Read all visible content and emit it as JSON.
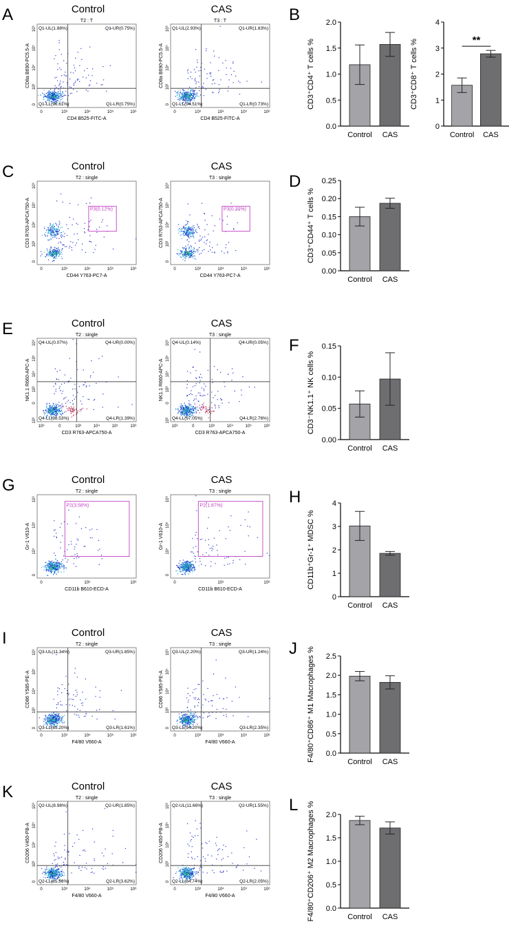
{
  "conditions": [
    "Control",
    "CAS"
  ],
  "panels": [
    {
      "id": "A",
      "type": "flow_quadrant",
      "xlabel": "CD4 B525-FITC-A",
      "ylabel": "CD8a B690-PC5.5-A",
      "plots": [
        {
          "cond": "Control",
          "gate": "T2 : T",
          "labels": [
            "Q1-UL(1.88%)",
            "Q1-UR(0.75%)",
            "Q1-LL(96.61%)",
            "Q1-LR(0.75%)"
          ],
          "x_ticks": [
            "0",
            "10³",
            "10⁴",
            "10⁵",
            "10⁶"
          ],
          "y_ticks": [
            "10⁶",
            "10⁵",
            "10⁴",
            "10³",
            "0"
          ]
        },
        {
          "cond": "CAS",
          "gate": "T3 : T",
          "labels": [
            "Q1-UL(2.93%)",
            "Q1-UR(1.83%)",
            "Q1-LL(94.51%)",
            "Q1-LR(0.73%)"
          ],
          "x_ticks": [
            "0",
            "10³",
            "10⁴",
            "10⁵",
            "10⁶"
          ],
          "y_ticks": [
            "10⁶",
            "10⁵",
            "10⁴",
            "10³",
            "0"
          ]
        }
      ]
    },
    {
      "id": "C",
      "type": "flow_gate",
      "xlabel": "CD44 Y763-PC7-A",
      "ylabel": "CD3 R763-APCA750-A",
      "plots": [
        {
          "cond": "Control",
          "gate": "T2 : single",
          "labels": [
            "P3(0.12%)"
          ],
          "x_ticks": [
            "0",
            "10³",
            "10⁴",
            "10⁵",
            "10⁶"
          ],
          "y_ticks": [
            "10⁶",
            "10⁵",
            "10⁴",
            "10³",
            "0"
          ]
        },
        {
          "cond": "CAS",
          "gate": "T3 : single",
          "labels": [
            "P3(0.20%)"
          ],
          "x_ticks": [
            "0",
            "10³",
            "10⁴",
            "10⁵",
            "10⁶"
          ],
          "y_ticks": [
            "10⁶",
            "10⁵",
            "10⁴",
            "10³",
            "0"
          ]
        }
      ]
    },
    {
      "id": "E",
      "type": "flow_quadrant",
      "xlabel": "CD3 R763-APCA750-A",
      "ylabel": "NK1.1 R660-APC-A",
      "plots": [
        {
          "cond": "Control",
          "gate": "T2 : single",
          "labels": [
            "Q4-UL(0.07%)",
            "Q4-UR(0.00%)",
            "Q4-LL(98.53%)",
            "Q4-LR(1.39%)"
          ],
          "x_ticks": [
            "10³",
            "0",
            "10³",
            "10⁴",
            "10⁵",
            "10⁶"
          ],
          "y_ticks": [
            "10⁶",
            "10⁵",
            "10⁴",
            "10³",
            "0",
            "10³"
          ]
        },
        {
          "cond": "CAS",
          "gate": "T3 : single",
          "labels": [
            "Q4-UL(0.14%)",
            "Q4-UR(0.05%)",
            "Q4-LL(97.05%)",
            "Q4-LR(2.76%)"
          ],
          "x_ticks": [
            "10³",
            "0",
            "10³",
            "10⁴",
            "10⁵",
            "10⁶"
          ],
          "y_ticks": [
            "10⁶",
            "10⁵",
            "10⁴",
            "10³",
            "0",
            "10³"
          ]
        }
      ]
    },
    {
      "id": "G",
      "type": "flow_gate",
      "xlabel": "CD11b B610-ECD-A",
      "ylabel": "Gr-1 V610-A",
      "plots": [
        {
          "cond": "Control",
          "gate": "T2 : single",
          "labels": [
            "P2(3.58%)"
          ],
          "x_ticks": [
            "0",
            "10⁵",
            "10⁶"
          ],
          "y_ticks": [
            "10⁶",
            "10⁵",
            "10⁴",
            "0"
          ]
        },
        {
          "cond": "CAS",
          "gate": "T3 : single",
          "labels": [
            "P2(1.87%)"
          ],
          "x_ticks": [
            "0",
            "10⁵",
            "10⁶"
          ],
          "y_ticks": [
            "10⁶",
            "10⁵",
            "10⁴",
            "0"
          ]
        }
      ]
    },
    {
      "id": "I",
      "type": "flow_quadrant",
      "xlabel": "F4/80 V660-A",
      "ylabel": "CD86 Y585-PE-A",
      "plots": [
        {
          "cond": "Control",
          "gate": "T2 : single",
          "labels": [
            "Q3-UL(11.34%)",
            "Q3-UR(1.85%)",
            "Q3-LL(85.20%)",
            "Q3-LR(1.61%)"
          ],
          "x_ticks": [
            "0",
            "10³",
            "10⁴",
            "10⁵",
            "10⁶"
          ],
          "y_ticks": [
            "10⁶",
            "10⁵",
            "10⁴",
            "10³",
            "0"
          ]
        },
        {
          "cond": "CAS",
          "gate": "T3 : single",
          "labels": [
            "Q3-UL(2.20%)",
            "Q3-UR(1.24%)",
            "Q3-LL(94.20%)",
            "Q3-LR(2.35%)"
          ],
          "x_ticks": [
            "0",
            "10³",
            "10⁴",
            "10⁵",
            "10⁶"
          ],
          "y_ticks": [
            "10⁶",
            "10⁵",
            "10⁴",
            "10³",
            "0"
          ]
        }
      ]
    },
    {
      "id": "K",
      "type": "flow_quadrant",
      "xlabel": "F4/80 V660-A",
      "ylabel": "CD206 V450-PB-A",
      "plots": [
        {
          "cond": "Control",
          "gate": "T2 : single",
          "labels": [
            "Q2-UL(8.98%)",
            "Q2-UR(1.85%)",
            "Q2-LL(85.56%)",
            "Q2-LR(3.62%)"
          ],
          "x_ticks": [
            "0",
            "10³",
            "10⁴",
            "10⁵",
            "10⁶"
          ],
          "y_ticks": [
            "10⁶",
            "10⁵",
            "10⁴",
            "10³",
            "0"
          ]
        },
        {
          "cond": "CAS",
          "gate": "T3 : single",
          "labels": [
            "Q2-UL(11.66%)",
            "Q2-UR(1.55%)",
            "Q2-LL(84.74%)",
            "Q2-LR(2.05%)"
          ],
          "x_ticks": [
            "0",
            "10³",
            "10⁴",
            "10⁵",
            "10⁶"
          ],
          "y_ticks": [
            "10⁶",
            "10⁵",
            "10⁴",
            "10³",
            "0"
          ]
        }
      ]
    }
  ],
  "colors": {
    "control_bar": "#a3a3a8",
    "cas_bar": "#6e6e70",
    "gate": "#c040c0",
    "dot_blue": "#2030c8",
    "dot_cyan": "#30b8e0",
    "dot_red": "#c03050",
    "dot_green": "#30c060"
  },
  "chart_data": [
    {
      "id": "B1",
      "label": "B",
      "type": "bar",
      "categories": [
        "Control",
        "CAS"
      ],
      "values": [
        1.18,
        1.57
      ],
      "errors": [
        0.38,
        0.23
      ],
      "ylabel": "CD3⁺CD4⁺ T cells %",
      "ylim": [
        0,
        2.0
      ],
      "yticks": [
        "0.0",
        "0.5",
        "1.0",
        "1.5",
        "2.0"
      ],
      "significance": ""
    },
    {
      "id": "B2",
      "label": "",
      "type": "bar",
      "categories": [
        "Control",
        "CAS"
      ],
      "values": [
        1.57,
        2.78
      ],
      "errors": [
        0.28,
        0.13
      ],
      "ylabel": "CD3⁺CD8⁺ T cells %",
      "ylim": [
        0,
        4
      ],
      "yticks": [
        "0",
        "1",
        "2",
        "3",
        "4"
      ],
      "significance": "**"
    },
    {
      "id": "D",
      "label": "D",
      "type": "bar",
      "categories": [
        "Control",
        "CAS"
      ],
      "values": [
        0.15,
        0.187
      ],
      "errors": [
        0.026,
        0.014
      ],
      "ylabel": "CD3⁺CD44⁺ T cells %",
      "ylim": [
        0,
        0.25
      ],
      "yticks": [
        "0.00",
        "0.05",
        "0.10",
        "0.15",
        "0.20",
        "0.25"
      ],
      "significance": ""
    },
    {
      "id": "F",
      "label": "F",
      "type": "bar",
      "categories": [
        "Control",
        "CAS"
      ],
      "values": [
        0.057,
        0.097
      ],
      "errors": [
        0.021,
        0.042
      ],
      "ylabel": "CD3⁻NK1.1⁺ NK cells %",
      "ylim": [
        0,
        0.15
      ],
      "yticks": [
        "0.00",
        "0.05",
        "0.10",
        "0.15"
      ],
      "significance": ""
    },
    {
      "id": "H",
      "label": "H",
      "type": "bar",
      "categories": [
        "Control",
        "CAS"
      ],
      "values": [
        3.02,
        1.85
      ],
      "errors": [
        0.62,
        0.08
      ],
      "ylabel": "CD11b⁺Gr-1⁺ MDSC %",
      "ylim": [
        0,
        4
      ],
      "yticks": [
        "0",
        "1",
        "2",
        "3",
        "4"
      ],
      "significance": ""
    },
    {
      "id": "J",
      "label": "J",
      "type": "bar",
      "categories": [
        "Control",
        "CAS"
      ],
      "values": [
        1.98,
        1.82
      ],
      "errors": [
        0.12,
        0.17
      ],
      "ylabel": "F4/80⁺CD86⁺ M1 Macrophages %",
      "ylim": [
        0,
        2.5
      ],
      "yticks": [
        "0.0",
        "0.5",
        "1.0",
        "1.5",
        "2.0",
        "2.5"
      ],
      "significance": ""
    },
    {
      "id": "L",
      "label": "L",
      "type": "bar",
      "categories": [
        "Control",
        "CAS"
      ],
      "values": [
        1.87,
        1.71
      ],
      "errors": [
        0.09,
        0.13
      ],
      "ylabel": "F4/80⁺CD206⁺ M2 Macrophages %",
      "ylim": [
        0,
        2.0
      ],
      "yticks": [
        "0.0",
        "0.5",
        "1.0",
        "1.5",
        "2.0"
      ],
      "significance": ""
    }
  ]
}
